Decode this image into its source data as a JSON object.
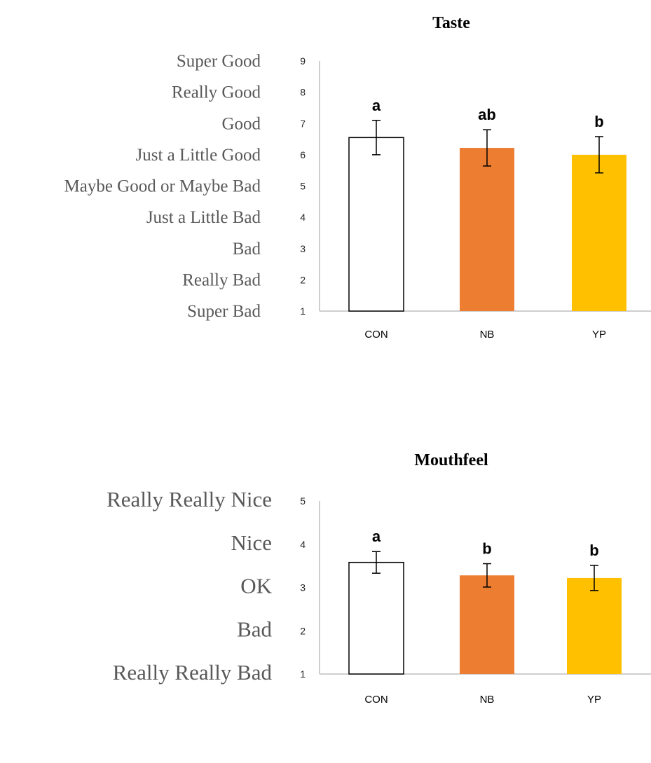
{
  "chart_data": [
    {
      "type": "bar",
      "title": "Taste",
      "categories": [
        "CON",
        "NB",
        "YP"
      ],
      "values": [
        6.55,
        6.22,
        6.0
      ],
      "error": [
        0.55,
        0.58,
        0.58
      ],
      "significance": [
        "a",
        "ab",
        "b"
      ],
      "ylim": [
        1,
        9
      ],
      "yticks": [
        "1",
        "2",
        "3",
        "4",
        "5",
        "6",
        "7",
        "8",
        "9"
      ],
      "scale_labels": [
        "Super Bad",
        "Really Bad",
        "Bad",
        "Just a Little Bad",
        "Maybe Good or Maybe Bad",
        "Just a Little Good",
        "Good",
        "Really Good",
        "Super Good"
      ],
      "colors": [
        "#ffffff",
        "#ed7d31",
        "#ffc000"
      ],
      "grid": false
    },
    {
      "type": "bar",
      "title": "Mouthfeel",
      "categories": [
        "CON",
        "NB",
        "YP"
      ],
      "values": [
        3.58,
        3.28,
        3.22
      ],
      "error": [
        0.25,
        0.27,
        0.29
      ],
      "significance": [
        "a",
        "b",
        "b"
      ],
      "ylim": [
        1,
        5
      ],
      "yticks": [
        "1",
        "2",
        "3",
        "4",
        "5"
      ],
      "scale_labels": [
        "Really Really Bad",
        "Bad",
        "OK",
        "Nice",
        "Really Really Nice"
      ],
      "colors": [
        "#ffffff",
        "#ed7d31",
        "#ffc000"
      ],
      "grid": false
    }
  ]
}
